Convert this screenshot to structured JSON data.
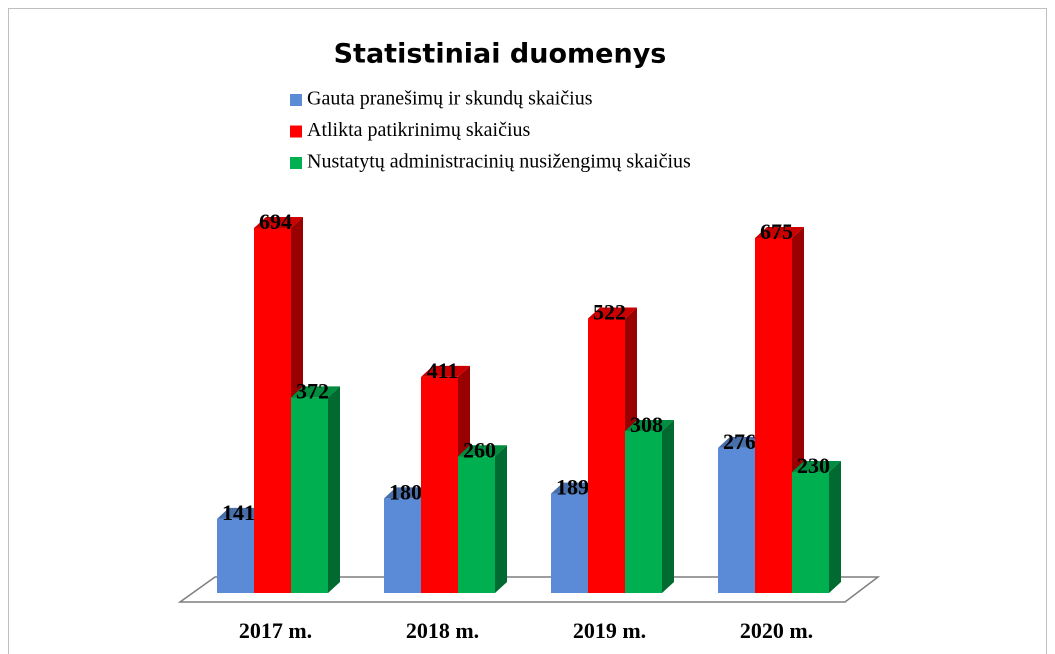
{
  "chart_data": {
    "type": "bar3d",
    "title": "Statistiniai duomenys",
    "categories": [
      "2017 m.",
      "2018 m.",
      "2019 m.",
      "2020 m."
    ],
    "series": [
      {
        "name": "Gauta pranešimų ir skundų skaičius",
        "color": "#5b8bd6",
        "values": [
          141,
          180,
          189,
          276
        ]
      },
      {
        "name": "Atlikta patikrinimų skaičius",
        "color": "#ff0000",
        "values": [
          694,
          411,
          522,
          675
        ]
      },
      {
        "name": "Nustatytų administracinių nusižengimų skaičius",
        "color": "#00b050",
        "values": [
          372,
          260,
          308,
          230
        ]
      }
    ]
  }
}
